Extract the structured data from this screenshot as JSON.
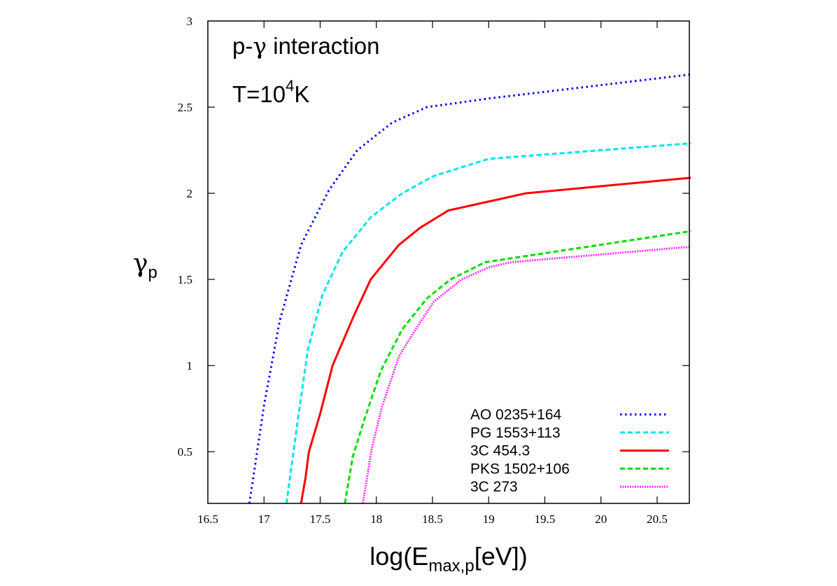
{
  "chart_data": {
    "type": "line",
    "title": "",
    "annotations": {
      "line1_pre": "p-",
      "line1_greek": "γ",
      "line1_post": " interaction",
      "line2_pre": "T=10",
      "line2_sup": "4",
      "line2_post": "K"
    },
    "xlabel": {
      "main": "log(E",
      "sub": "max,p",
      "tail": "[eV])"
    },
    "ylabel": {
      "main": "γ",
      "sub": "p"
    },
    "xlim": [
      16.5,
      20.8
    ],
    "ylim": [
      0.2,
      3
    ],
    "xticks": [
      "16.5",
      "17",
      "17.5",
      "18",
      "18.5",
      "19",
      "19.5",
      "20",
      "20.5"
    ],
    "yticks": [
      "0.5",
      "1",
      "1.5",
      "2",
      "2.5",
      "3"
    ],
    "grid": false,
    "legend_position": "bottom-right",
    "series": [
      {
        "name": "AO 0235+164",
        "color": "#0000ff",
        "style": "dotted",
        "x": [
          16.87,
          17.0,
          17.14,
          17.33,
          17.58,
          17.83,
          18.14,
          18.45,
          19.0,
          20.8
        ],
        "y": [
          0.2,
          0.77,
          1.26,
          1.7,
          2.02,
          2.25,
          2.41,
          2.5,
          2.55,
          2.69
        ]
      },
      {
        "name": "PG 1553+113",
        "color": "#00e5ee",
        "style": "dashed",
        "x": [
          17.2,
          17.3,
          17.39,
          17.52,
          17.7,
          17.95,
          18.23,
          18.51,
          19.0,
          20.8
        ],
        "y": [
          0.2,
          0.68,
          1.09,
          1.41,
          1.66,
          1.86,
          2.0,
          2.1,
          2.2,
          2.29
        ]
      },
      {
        "name": "3C 454.3",
        "color": "#ff0000",
        "style": "solid",
        "x": [
          17.33,
          17.37,
          17.4,
          17.5,
          17.61,
          17.8,
          17.95,
          18.2,
          18.39,
          18.64,
          19.33,
          20.8
        ],
        "y": [
          0.2,
          0.35,
          0.5,
          0.72,
          1.0,
          1.29,
          1.5,
          1.7,
          1.8,
          1.9,
          2.0,
          2.09
        ]
      },
      {
        "name": "PKS 1502+106",
        "color": "#00dd00",
        "style": "dashed",
        "x": [
          17.72,
          17.79,
          17.89,
          18.04,
          18.23,
          18.45,
          18.66,
          18.97,
          20.8
        ],
        "y": [
          0.2,
          0.47,
          0.68,
          0.97,
          1.21,
          1.39,
          1.5,
          1.6,
          1.78
        ]
      },
      {
        "name": "3C 273",
        "color": "#ff33ff",
        "style": "dense-dotted",
        "x": [
          17.88,
          17.96,
          18.05,
          18.2,
          18.33,
          18.51,
          18.76,
          19.0,
          19.2,
          20.8
        ],
        "y": [
          0.2,
          0.52,
          0.76,
          1.05,
          1.19,
          1.37,
          1.5,
          1.57,
          1.6,
          1.69
        ]
      }
    ]
  }
}
